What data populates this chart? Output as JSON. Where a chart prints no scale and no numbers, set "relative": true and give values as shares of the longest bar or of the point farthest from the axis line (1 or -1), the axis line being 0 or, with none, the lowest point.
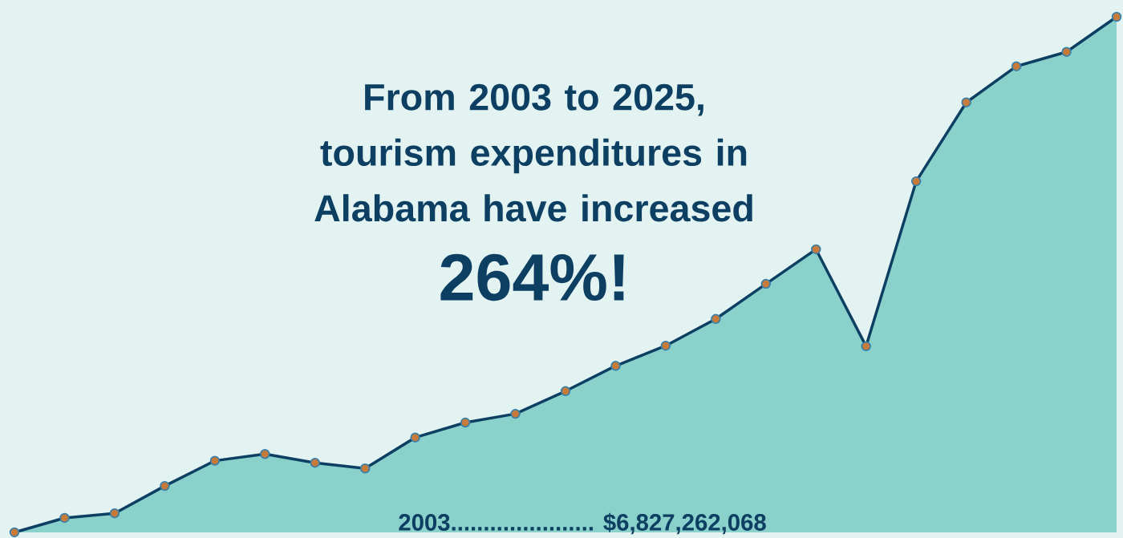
{
  "chart_data": {
    "type": "area",
    "relative": true,
    "title": "From 2003 to 2025, tourism expenditures in Alabama have increased",
    "subtitle": "264%!",
    "annotations": [
      "2003...................... $6,827,262,068"
    ],
    "categories": [
      null,
      null,
      null,
      null,
      null,
      null,
      null,
      null,
      null,
      null,
      null,
      null,
      null,
      null,
      null,
      null,
      null,
      null,
      null,
      null,
      null,
      null,
      null
    ],
    "series": [
      {
        "color": "#0d3f63",
        "values": [
          0,
          0.028,
          0.037,
          0.09,
          0.139,
          0.152,
          0.135,
          0.124,
          0.184,
          0.213,
          0.23,
          0.274,
          0.323,
          0.362,
          0.414,
          0.482,
          0.549,
          0.361,
          0.681,
          0.834,
          0.904,
          0.932,
          1
        ]
      }
    ],
    "marker": "circle"
  }
}
